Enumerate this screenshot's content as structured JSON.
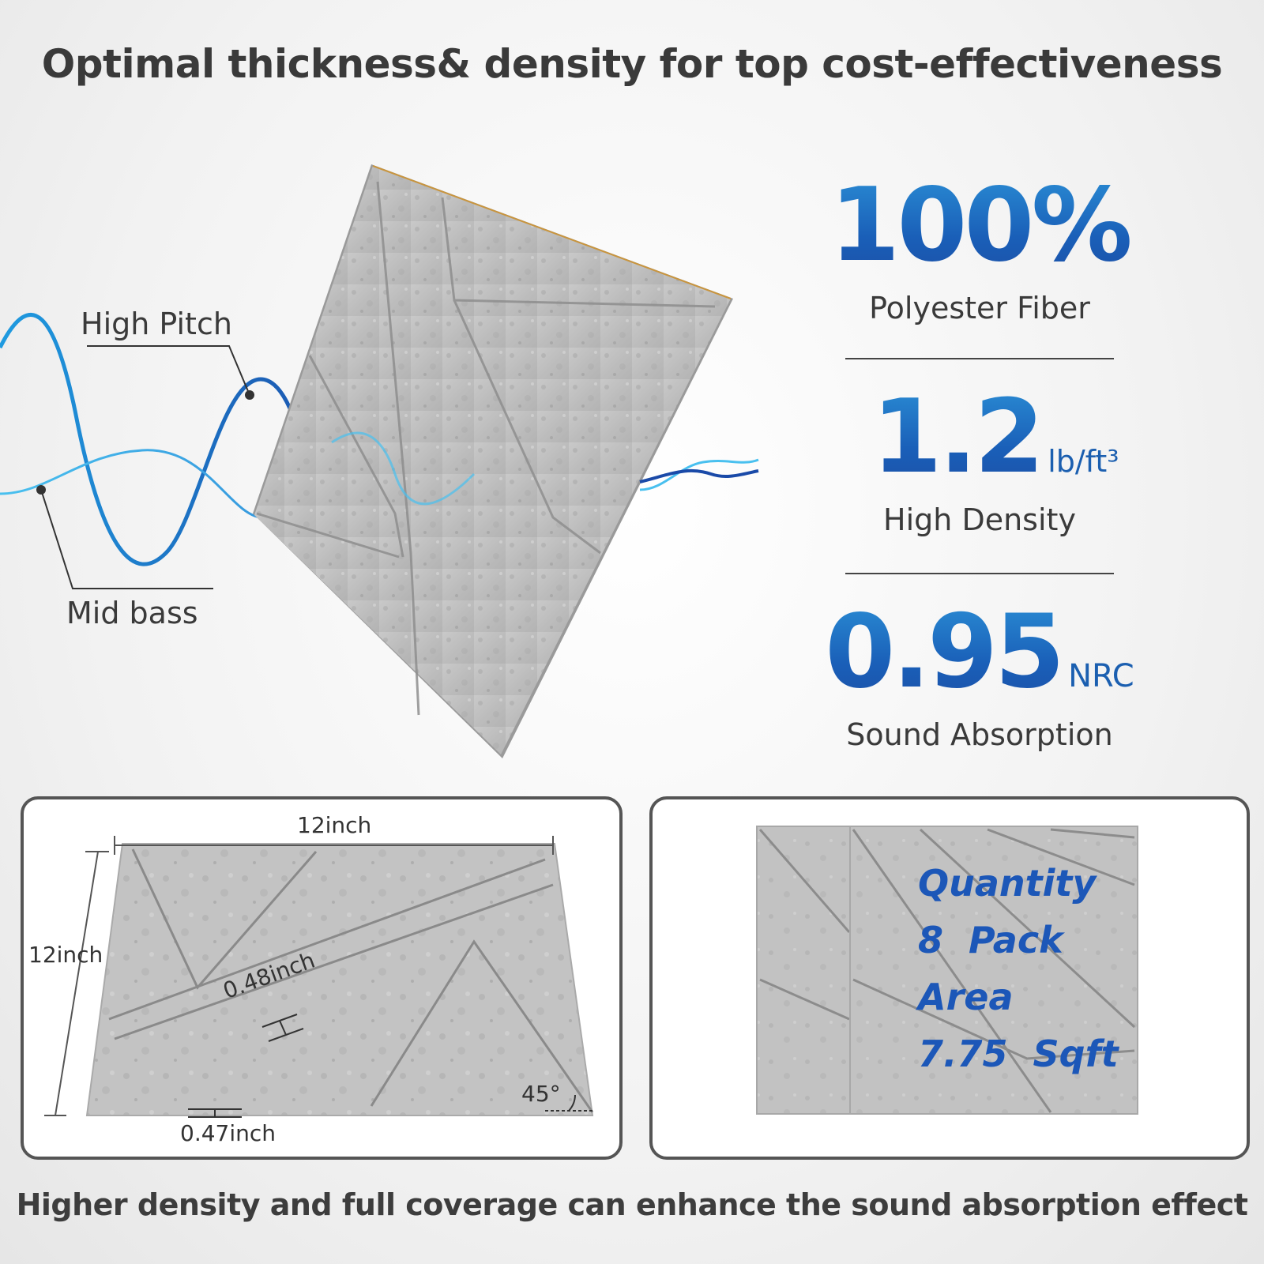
{
  "title": "Optimal thickness& density for top cost-effectiveness",
  "waves": {
    "high_pitch": "High Pitch",
    "mid_bass": "Mid bass"
  },
  "stats": [
    {
      "value": "100%",
      "unit": "",
      "caption": "Polyester Fiber"
    },
    {
      "value": "1.2",
      "unit": "lb/ft³",
      "caption": "High Density"
    },
    {
      "value": "0.95",
      "unit": "NRC",
      "caption": "Sound Absorption"
    }
  ],
  "dimensions": {
    "width": "12inch",
    "height": "12inch",
    "groove_width": "0.48inch",
    "edge_thickness": "0.47inch",
    "angle": "45°"
  },
  "quantity": {
    "line1": "Quantity",
    "line2": "8  Pack",
    "line3": "Area",
    "line4": "7.75  Sqft"
  },
  "footer": "Higher density and full coverage can enhance the sound absorption effect",
  "colors": {
    "accent_blue": "#1c5fb8",
    "panel_gray": "#bdbdbd"
  }
}
